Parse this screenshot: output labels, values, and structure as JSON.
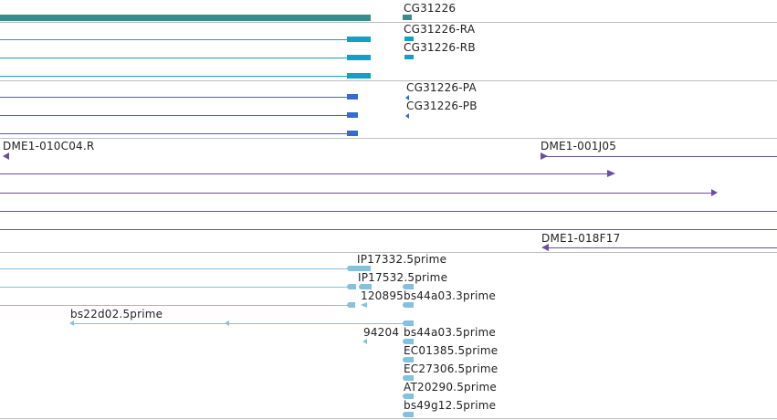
{
  "colors": {
    "gene": "#3a8c8c",
    "transcript": "#14a0c2",
    "protein": "#2f6cd6",
    "clone": "#6a4ea6",
    "est": "#84c0df",
    "separator": "#bdbdbd"
  },
  "tracks": {
    "gene": {
      "label": "CG31226"
    },
    "transcripts": {
      "labels": [
        "CG31226-RA",
        "CG31226-RB"
      ]
    },
    "proteins": {
      "labels": [
        "CG31226-PA",
        "CG31226-PB"
      ]
    },
    "clones": {
      "labels": [
        "DME1-010C04.R",
        "DME1-001J05",
        "DME1-018F17"
      ]
    },
    "ests": {
      "labels": [
        "IP17332.5prime",
        "IP17532.5prime",
        "120895",
        "bs44a03.3prime",
        "bs22d02.5prime",
        "94204",
        "bs44a03.5prime",
        "EC01385.5prime",
        "EC27306.5prime",
        "AT20290.5prime",
        "bs49g12.5prime"
      ]
    }
  }
}
